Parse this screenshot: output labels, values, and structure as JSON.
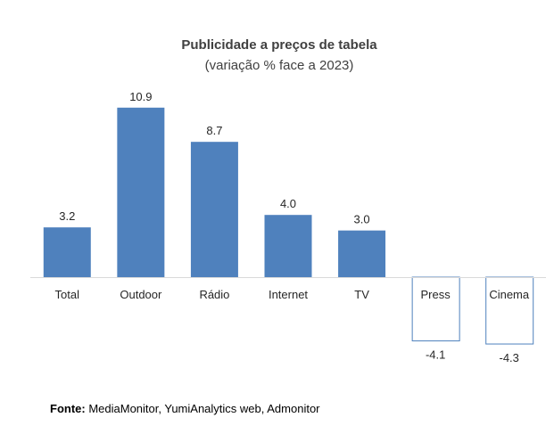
{
  "chart_data": {
    "type": "bar",
    "title": "Publicidade a preços de tabela",
    "subtitle": "(variação % face a 2023)",
    "categories": [
      "Total",
      "Outdoor",
      "Rádio",
      "Internet",
      "TV",
      "Press",
      "Cinema"
    ],
    "values": [
      3.2,
      10.9,
      8.7,
      4.0,
      3.0,
      -4.1,
      -4.3
    ],
    "value_labels": [
      "3.2",
      "10.9",
      "8.7",
      "4.0",
      "3.0",
      "-4.1",
      "-4.3"
    ],
    "xlabel": "",
    "ylabel": "",
    "ylim": [
      -4.3,
      10.9
    ],
    "grid": false,
    "legend": "none",
    "colors": {
      "positive_fill": "#4f81bd",
      "negative_fill": "#ffffff",
      "negative_stroke": "#4f81bd",
      "axis": "#d9d9d9"
    }
  },
  "source": {
    "label": "Fonte:",
    "text": "MediaMonitor, YumiAnalytics web, Admonitor"
  }
}
